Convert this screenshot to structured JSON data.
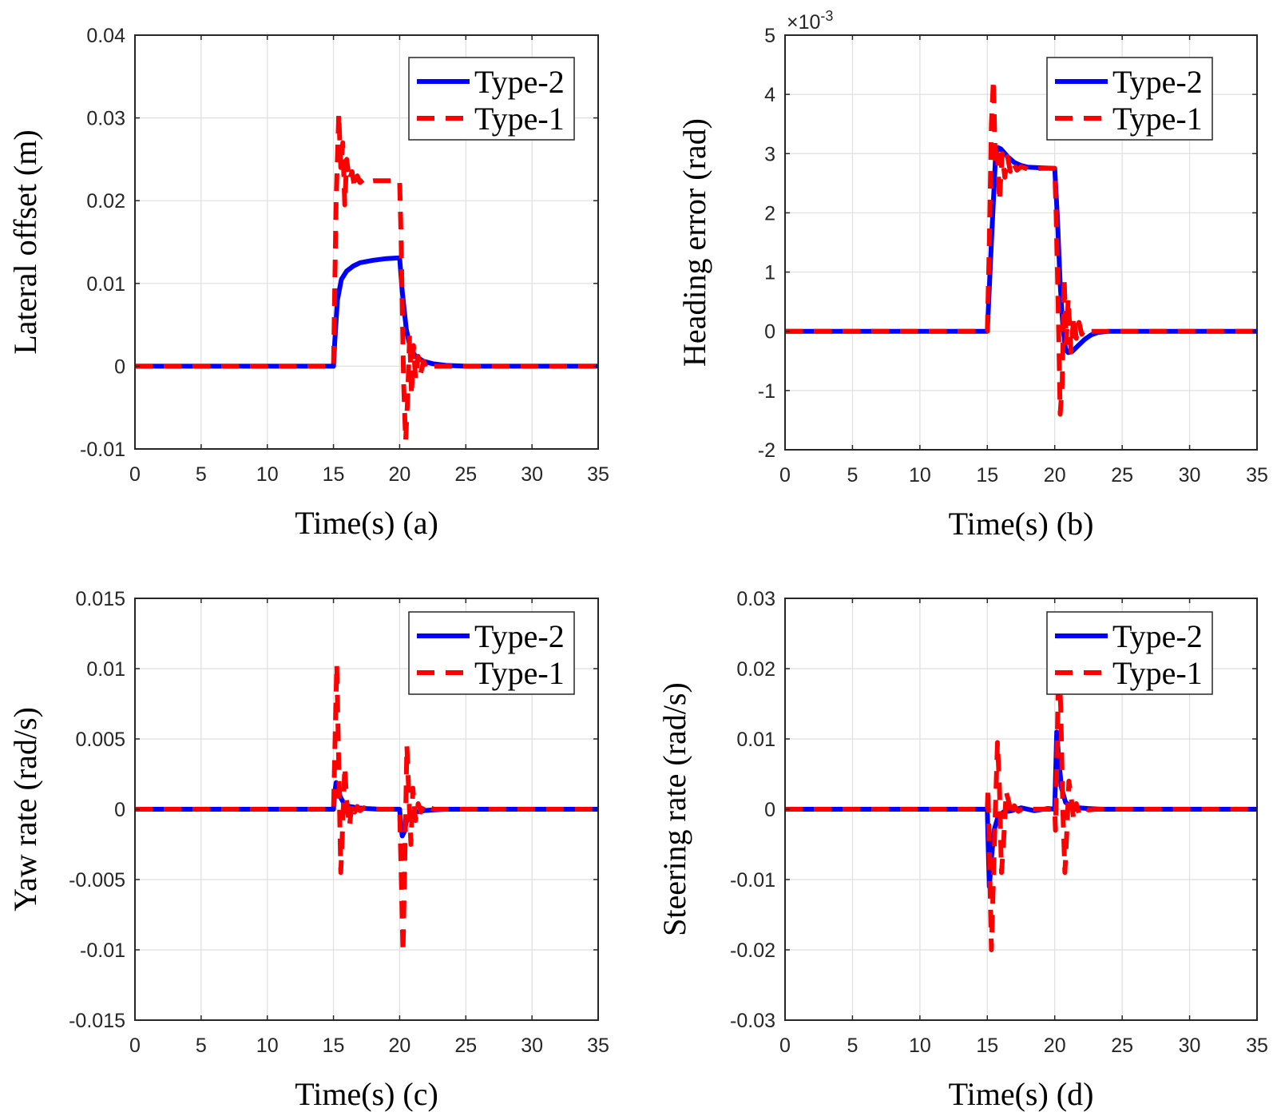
{
  "legend": {
    "entries": [
      {
        "name": "Type-2",
        "color": "#0000FF",
        "style": "solid"
      },
      {
        "name": "Type-1",
        "color": "#FF0000",
        "style": "dashed"
      }
    ]
  },
  "chart_data": [
    {
      "id": "a",
      "type": "line",
      "xlabel": "Time(s) (a)",
      "ylabel": "Lateral offset (m)",
      "xlim": [
        0,
        35
      ],
      "ylim": [
        -0.01,
        0.04
      ],
      "xticks": [
        "0",
        "5",
        "10",
        "15",
        "20",
        "25",
        "30",
        "35"
      ],
      "xtick_values": [
        0,
        5,
        10,
        15,
        20,
        25,
        30,
        35
      ],
      "yticks": [
        "-0.01",
        "0",
        "0.01",
        "0.02",
        "0.03",
        "0.04"
      ],
      "ytick_values": [
        -0.01,
        0,
        0.01,
        0.02,
        0.03,
        0.04
      ],
      "multiplier": "",
      "grid": true,
      "legend_position": "top-right",
      "series": [
        {
          "name": "Type-2",
          "x": [
            0,
            15,
            15.1,
            15.3,
            15.6,
            16,
            16.5,
            17,
            18,
            19,
            20,
            20.2,
            20.5,
            20.8,
            21.2,
            21.8,
            22.5,
            23.5,
            25,
            35
          ],
          "y": [
            0,
            0,
            0.003,
            0.008,
            0.0105,
            0.0115,
            0.0121,
            0.0125,
            0.0128,
            0.013,
            0.0131,
            0.009,
            0.0045,
            0.0022,
            0.0012,
            0.0006,
            0.0003,
            0.0001,
            0,
            0
          ]
        },
        {
          "name": "Type-1",
          "x": [
            0,
            15,
            15.2,
            15.4,
            15.55,
            15.7,
            15.85,
            16,
            16.2,
            16.4,
            16.6,
            16.8,
            17,
            17.3,
            17.6,
            18,
            19,
            20,
            20.1,
            20.3,
            20.45,
            20.6,
            20.75,
            20.9,
            21.05,
            21.2,
            21.4,
            21.6,
            21.8,
            22.0,
            22.3,
            22.6,
            23,
            24,
            35
          ],
          "y": [
            0,
            0,
            0.02,
            0.0305,
            0.024,
            0.027,
            0.0195,
            0.025,
            0.0225,
            0.0235,
            0.0215,
            0.023,
            0.0222,
            0.0226,
            0.0223,
            0.0224,
            0.0224,
            0.0224,
            0.016,
            -0.002,
            -0.009,
            -0.004,
            0.0038,
            -0.0035,
            0.0025,
            -0.0015,
            0.0012,
            -0.0008,
            0.0006,
            -0.0002,
            0.0002,
            0,
            0,
            0,
            0
          ]
        }
      ]
    },
    {
      "id": "b",
      "type": "line",
      "xlabel": "Time(s) (b)",
      "ylabel": "Heading error (rad)",
      "xlim": [
        0,
        35
      ],
      "ylim": [
        -2,
        5
      ],
      "xticks": [
        "0",
        "5",
        "10",
        "15",
        "20",
        "25",
        "30",
        "35"
      ],
      "xtick_values": [
        0,
        5,
        10,
        15,
        20,
        25,
        30,
        35
      ],
      "yticks": [
        "-2",
        "-1",
        "0",
        "1",
        "2",
        "3",
        "4",
        "5"
      ],
      "ytick_values": [
        -2,
        -1,
        0,
        1,
        2,
        3,
        4,
        5
      ],
      "multiplier": "×10⁻³",
      "multiplier_base": "×10",
      "multiplier_exp": "-3",
      "grid": true,
      "legend_position": "top-right",
      "series": [
        {
          "name": "Type-2",
          "x": [
            0,
            15,
            15.3,
            15.6,
            15.8,
            16,
            16.5,
            17,
            17.5,
            18,
            19,
            20,
            20.2,
            20.4,
            20.6,
            20.8,
            21,
            21.3,
            21.7,
            22.2,
            22.7,
            23.2,
            24,
            35
          ],
          "y": [
            0,
            0,
            1.5,
            2.9,
            3.1,
            3.08,
            2.95,
            2.85,
            2.8,
            2.77,
            2.76,
            2.75,
            1.9,
            0.8,
            0.1,
            -0.3,
            -0.36,
            -0.34,
            -0.25,
            -0.14,
            -0.06,
            -0.02,
            0,
            0
          ]
        },
        {
          "name": "Type-1",
          "x": [
            0,
            15,
            15.15,
            15.3,
            15.45,
            15.6,
            15.75,
            15.9,
            16.1,
            16.3,
            16.5,
            16.7,
            16.9,
            17.2,
            17.5,
            18,
            19,
            20,
            20.1,
            20.25,
            20.4,
            20.55,
            20.7,
            20.85,
            21,
            21.2,
            21.4,
            21.6,
            21.8,
            22,
            22.3,
            22.6,
            23,
            24,
            35
          ],
          "y": [
            0,
            0,
            1.5,
            3.5,
            4.25,
            2.8,
            3.0,
            2.2,
            3.0,
            2.6,
            2.95,
            2.7,
            2.85,
            2.72,
            2.78,
            2.74,
            2.75,
            2.75,
            2.0,
            0.5,
            -1.4,
            -0.9,
            0.9,
            -0.2,
            0.55,
            -0.35,
            0.25,
            -0.12,
            0.15,
            -0.05,
            0.05,
            0,
            0,
            0,
            0
          ]
        }
      ]
    },
    {
      "id": "c",
      "type": "line",
      "xlabel": "Time(s) (c)",
      "ylabel": "Yaw rate (rad/s)",
      "xlim": [
        0,
        35
      ],
      "ylim": [
        -0.015,
        0.015
      ],
      "xticks": [
        "0",
        "5",
        "10",
        "15",
        "20",
        "25",
        "30",
        "35"
      ],
      "xtick_values": [
        0,
        5,
        10,
        15,
        20,
        25,
        30,
        35
      ],
      "yticks": [
        "-0.015",
        "-0.01",
        "-0.005",
        "0",
        "0.005",
        "0.01",
        "0.015"
      ],
      "ytick_values": [
        -0.015,
        -0.01,
        -0.005,
        0,
        0.005,
        0.01,
        0.015
      ],
      "multiplier": "",
      "grid": true,
      "legend_position": "top-right",
      "series": [
        {
          "name": "Type-2",
          "x": [
            0,
            15,
            15.1,
            15.2,
            15.35,
            15.5,
            15.8,
            16.2,
            16.8,
            17.5,
            18.5,
            20,
            20.1,
            20.2,
            20.35,
            20.5,
            20.8,
            21.2,
            21.8,
            22.5,
            23.5,
            35
          ],
          "y": [
            0,
            0,
            0.0012,
            0.0019,
            0.0016,
            0.0009,
            0.0004,
            0.0002,
            0.0001,
            5e-05,
            0,
            0,
            -0.0012,
            -0.0019,
            -0.0016,
            -0.0009,
            -0.0004,
            -0.0002,
            -0.0001,
            -5e-05,
            0,
            0
          ]
        },
        {
          "name": "Type-1",
          "x": [
            0,
            15,
            15.1,
            15.25,
            15.4,
            15.55,
            15.7,
            15.85,
            16,
            16.2,
            16.4,
            16.6,
            16.8,
            17,
            17.3,
            17.6,
            18,
            20,
            20.1,
            20.25,
            20.4,
            20.55,
            20.7,
            20.85,
            21,
            21.2,
            21.4,
            21.6,
            21.8,
            22,
            22.3,
            22.6,
            23,
            35
          ],
          "y": [
            0,
            0,
            0.004,
            0.0103,
            0.003,
            -0.0045,
            -0.001,
            0.003,
            0.0005,
            -0.0012,
            0.0004,
            -0.0002,
            0.0002,
            -0.0001,
            0.0001,
            0,
            0,
            0,
            -0.004,
            -0.0102,
            -0.003,
            0.0045,
            0.001,
            -0.0025,
            0.0015,
            -0.0008,
            0.0004,
            -0.0002,
            0.0002,
            -0.0001,
            0.0001,
            0,
            0,
            0
          ]
        }
      ]
    },
    {
      "id": "d",
      "type": "line",
      "xlabel": "Time(s) (d)",
      "ylabel": "Steering rate (rad/s)",
      "xlim": [
        0,
        35
      ],
      "ylim": [
        -0.03,
        0.03
      ],
      "xticks": [
        "0",
        "5",
        "10",
        "15",
        "20",
        "25",
        "30",
        "35"
      ],
      "xtick_values": [
        0,
        5,
        10,
        15,
        20,
        25,
        30,
        35
      ],
      "yticks": [
        "-0.03",
        "-0.02",
        "-0.01",
        "0",
        "0.01",
        "0.02",
        "0.03"
      ],
      "ytick_values": [
        -0.03,
        -0.02,
        -0.01,
        0,
        0.01,
        0.02,
        0.03
      ],
      "multiplier": "",
      "grid": true,
      "legend_position": "top-right",
      "series": [
        {
          "name": "Type-2",
          "x": [
            0,
            15,
            15.05,
            15.15,
            15.3,
            15.5,
            15.8,
            16.2,
            16.8,
            17.5,
            18.5,
            19.5,
            20,
            20.05,
            20.15,
            20.3,
            20.5,
            20.8,
            21.2,
            21.8,
            22.5,
            23.5,
            35
          ],
          "y": [
            0,
            0,
            -0.004,
            -0.011,
            -0.007,
            -0.003,
            -0.001,
            -0.0004,
            -0.0002,
            0.0002,
            -0.0002,
            0.0001,
            0,
            0.004,
            0.011,
            0.007,
            0.003,
            0.001,
            0.0004,
            0.0002,
            0.0001,
            0,
            0
          ]
        },
        {
          "name": "Type-1",
          "x": [
            0,
            15,
            15.05,
            15.15,
            15.3,
            15.45,
            15.6,
            15.75,
            15.9,
            16.05,
            16.2,
            16.4,
            16.6,
            16.8,
            17,
            17.3,
            17.7,
            18.2,
            20,
            20.05,
            20.15,
            20.3,
            20.45,
            20.6,
            20.75,
            20.9,
            21.05,
            21.2,
            21.4,
            21.6,
            21.8,
            22.1,
            22.5,
            23,
            35
          ],
          "y": [
            0,
            0,
            0.003,
            -0.006,
            -0.02,
            -0.01,
            0.0,
            0.0095,
            0.003,
            -0.009,
            -0.005,
            0.0025,
            0.001,
            -0.001,
            0.0005,
            -0.0003,
            0.0002,
            0,
            0,
            -0.003,
            0.006,
            0.022,
            0.014,
            0.0,
            -0.009,
            -0.003,
            0.004,
            0.002,
            -0.0015,
            0.0008,
            -0.0005,
            0.0003,
            -0.0001,
            0,
            0
          ]
        }
      ]
    }
  ]
}
